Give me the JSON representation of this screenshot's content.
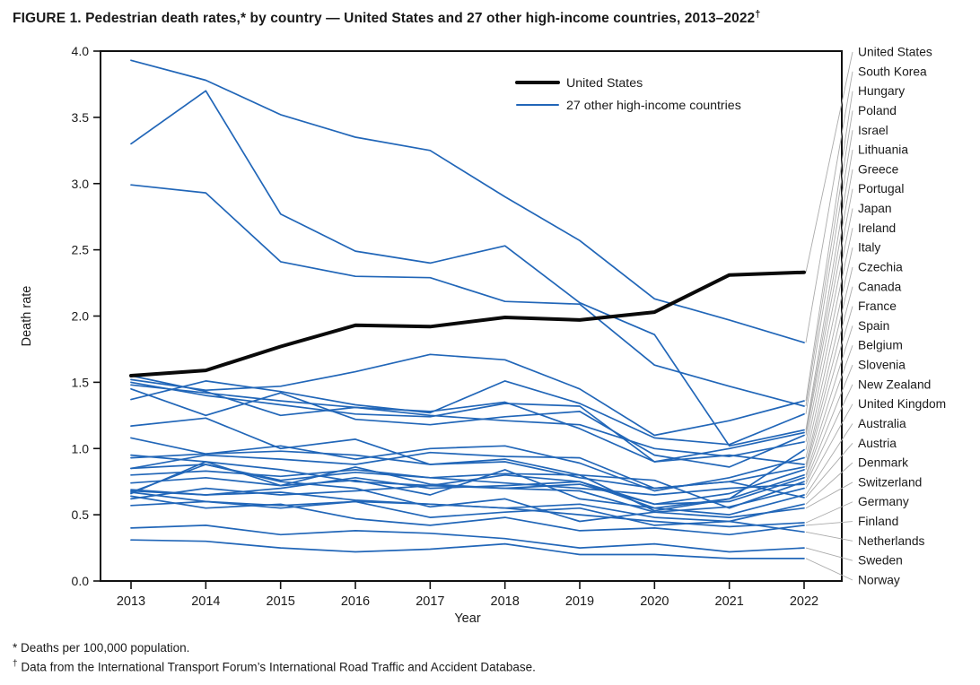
{
  "figure": {
    "title_text": "FIGURE 1. Pedestrian death rates,* by country — United States and 27 other high-income countries, 2013–2022",
    "title_superscript": "†"
  },
  "footnotes": {
    "line1": "* Deaths per 100,000 population.",
    "line2_symbol": "†",
    "line2_text": " Data from the International Transport Forum’s International Road Traffic and Accident Database."
  },
  "chart_data": {
    "type": "line",
    "title": "FIGURE 1. Pedestrian death rates, by country — United States and 27 other high-income countries, 2013–2022",
    "xlabel": "Year",
    "ylabel": "Death rate",
    "x": [
      2013,
      2014,
      2015,
      2016,
      2017,
      2018,
      2019,
      2020,
      2021,
      2022
    ],
    "ylim": [
      0.0,
      4.0
    ],
    "ytick_step": 0.5,
    "grid": false,
    "legend": {
      "position": "top-right-inside",
      "items": [
        {
          "label": "United States",
          "color": "#0a0a0a",
          "line_width": 4
        },
        {
          "label": "27 other high-income countries",
          "color": "#2166b8",
          "line_width": 2
        }
      ]
    },
    "colors": {
      "us_line": "#0a0a0a",
      "other_line": "#2166b8",
      "leader_line": "#ababab",
      "axis": "#111111",
      "text": "#1a1a1a"
    },
    "series": [
      {
        "name": "United States",
        "emphasis": true,
        "values": [
          1.55,
          1.59,
          1.77,
          1.93,
          1.92,
          1.99,
          1.97,
          2.03,
          2.31,
          2.33
        ]
      },
      {
        "name": "South Korea",
        "emphasis": false,
        "values": [
          3.93,
          3.78,
          3.52,
          3.35,
          3.25,
          2.9,
          2.57,
          2.13,
          1.97,
          1.8
        ]
      },
      {
        "name": "Hungary",
        "emphasis": false,
        "values": [
          1.52,
          1.44,
          1.47,
          1.58,
          1.71,
          1.67,
          1.45,
          1.1,
          1.21,
          1.36
        ]
      },
      {
        "name": "Poland",
        "emphasis": false,
        "values": [
          2.99,
          2.93,
          2.41,
          2.3,
          2.29,
          2.11,
          2.09,
          1.63,
          1.47,
          1.32
        ]
      },
      {
        "name": "Israel",
        "emphasis": false,
        "values": [
          1.37,
          1.51,
          1.43,
          1.33,
          1.27,
          1.51,
          1.34,
          1.08,
          1.03,
          1.26
        ]
      },
      {
        "name": "Lithuania",
        "emphasis": false,
        "values": [
          3.3,
          3.7,
          2.77,
          2.49,
          2.4,
          2.53,
          2.1,
          1.86,
          1.02,
          1.14
        ]
      },
      {
        "name": "Greece",
        "emphasis": false,
        "values": [
          1.5,
          1.4,
          1.33,
          1.26,
          1.24,
          1.34,
          1.32,
          0.9,
          1.0,
          1.12
        ]
      },
      {
        "name": "Portugal",
        "emphasis": false,
        "values": [
          1.45,
          1.25,
          1.42,
          1.22,
          1.18,
          1.24,
          1.28,
          0.95,
          0.86,
          1.1
        ]
      },
      {
        "name": "Japan",
        "emphasis": false,
        "values": [
          1.48,
          1.42,
          1.36,
          1.31,
          1.25,
          1.21,
          1.18,
          1.0,
          0.94,
          1.05
        ]
      },
      {
        "name": "Ireland",
        "emphasis": false,
        "values": [
          0.66,
          0.9,
          0.72,
          0.76,
          0.65,
          0.84,
          0.62,
          0.55,
          0.62,
          0.99
        ]
      },
      {
        "name": "Italy",
        "emphasis": false,
        "values": [
          0.93,
          0.96,
          1.02,
          0.92,
          1.0,
          1.02,
          0.89,
          0.68,
          0.78,
          0.93
        ]
      },
      {
        "name": "Czechia",
        "emphasis": false,
        "values": [
          1.55,
          1.43,
          1.25,
          1.31,
          1.28,
          1.35,
          1.15,
          0.9,
          0.95,
          0.88
        ]
      },
      {
        "name": "Canada",
        "emphasis": false,
        "values": [
          0.85,
          0.95,
          0.92,
          0.88,
          0.97,
          0.94,
          0.93,
          0.7,
          0.75,
          0.86
        ]
      },
      {
        "name": "France",
        "emphasis": false,
        "values": [
          0.74,
          0.78,
          0.72,
          0.86,
          0.73,
          0.7,
          0.73,
          0.58,
          0.66,
          0.84
        ]
      },
      {
        "name": "Spain",
        "emphasis": false,
        "values": [
          0.8,
          0.83,
          0.79,
          0.84,
          0.78,
          0.81,
          0.8,
          0.53,
          0.62,
          0.8
        ]
      },
      {
        "name": "Belgium",
        "emphasis": false,
        "values": [
          0.95,
          0.9,
          0.84,
          0.75,
          0.72,
          0.8,
          0.75,
          0.58,
          0.6,
          0.78
        ]
      },
      {
        "name": "Slovenia",
        "emphasis": false,
        "values": [
          1.17,
          1.23,
          1.0,
          1.07,
          0.88,
          0.92,
          0.8,
          0.76,
          0.55,
          0.75
        ]
      },
      {
        "name": "New Zealand",
        "emphasis": false,
        "values": [
          0.67,
          0.88,
          0.76,
          0.82,
          0.78,
          0.74,
          0.7,
          0.65,
          0.7,
          0.73
        ]
      },
      {
        "name": "United Kingdom",
        "emphasis": false,
        "values": [
          0.62,
          0.7,
          0.65,
          0.68,
          0.72,
          0.7,
          0.68,
          0.52,
          0.56,
          0.7
        ]
      },
      {
        "name": "Australia",
        "emphasis": false,
        "values": [
          0.68,
          0.65,
          0.7,
          0.78,
          0.7,
          0.72,
          0.75,
          0.55,
          0.5,
          0.65
        ]
      },
      {
        "name": "Austria",
        "emphasis": false,
        "values": [
          1.08,
          0.96,
          0.98,
          0.95,
          0.88,
          0.9,
          0.78,
          0.7,
          0.75,
          0.63
        ]
      },
      {
        "name": "Denmark",
        "emphasis": false,
        "values": [
          0.57,
          0.6,
          0.55,
          0.6,
          0.48,
          0.52,
          0.55,
          0.42,
          0.45,
          0.58
        ]
      },
      {
        "name": "Switzerland",
        "emphasis": false,
        "values": [
          0.85,
          0.88,
          0.75,
          0.7,
          0.56,
          0.62,
          0.45,
          0.52,
          0.48,
          0.55
        ]
      },
      {
        "name": "Germany",
        "emphasis": false,
        "values": [
          0.69,
          0.65,
          0.67,
          0.61,
          0.58,
          0.55,
          0.5,
          0.45,
          0.41,
          0.44
        ]
      },
      {
        "name": "Finland",
        "emphasis": false,
        "values": [
          0.64,
          0.55,
          0.58,
          0.47,
          0.42,
          0.48,
          0.38,
          0.4,
          0.35,
          0.42
        ]
      },
      {
        "name": "Netherlands",
        "emphasis": false,
        "values": [
          0.67,
          0.6,
          0.57,
          0.6,
          0.58,
          0.55,
          0.58,
          0.48,
          0.45,
          0.37
        ]
      },
      {
        "name": "Sweden",
        "emphasis": false,
        "values": [
          0.4,
          0.42,
          0.35,
          0.38,
          0.36,
          0.32,
          0.25,
          0.28,
          0.22,
          0.25
        ]
      },
      {
        "name": "Norway",
        "emphasis": false,
        "values": [
          0.31,
          0.3,
          0.25,
          0.22,
          0.24,
          0.28,
          0.2,
          0.2,
          0.17,
          0.17
        ]
      }
    ]
  }
}
